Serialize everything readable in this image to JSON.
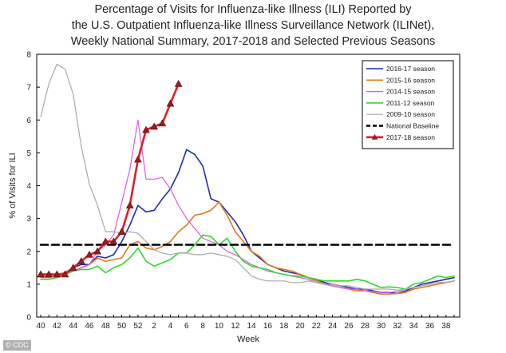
{
  "title_lines": [
    "Percentage of Visits for Influenza-like Illness (ILI) Reported by",
    "the U.S. Outpatient Influenza-like Illness Surveillance Network (ILINet),",
    "Weekly National Summary, 2017-2018  and Selected Previous Seasons"
  ],
  "credit": "© CDC",
  "chart_data": {
    "type": "line",
    "title": "Percentage of Visits for Influenza-like Illness (ILI) Reported by the U.S. Outpatient Influenza-like Illness Surveillance Network (ILINet), Weekly National Summary, 2017-2018  and Selected Previous Seasons",
    "xlabel": "Week",
    "ylabel": "% of Visits for ILI",
    "ylim": [
      0,
      8
    ],
    "yticks": [
      0,
      1,
      2,
      3,
      4,
      5,
      6,
      7,
      8
    ],
    "grid": false,
    "legend_position": "top-right",
    "weeks": [
      40,
      41,
      42,
      43,
      44,
      45,
      46,
      47,
      48,
      49,
      50,
      51,
      52,
      1,
      2,
      3,
      4,
      5,
      6,
      7,
      8,
      9,
      10,
      11,
      12,
      13,
      14,
      15,
      16,
      17,
      18,
      19,
      20,
      21,
      22,
      23,
      24,
      25,
      26,
      27,
      28,
      29,
      30,
      31,
      32,
      33,
      34,
      35,
      36,
      37,
      38,
      39
    ],
    "xtick_labels": [
      "40",
      "42",
      "44",
      "46",
      "48",
      "50",
      "52",
      "2",
      "4",
      "6",
      "8",
      "10",
      "12",
      "14",
      "16",
      "18",
      "20",
      "22",
      "24",
      "26",
      "28",
      "30",
      "32",
      "34",
      "36",
      "38"
    ],
    "series": [
      {
        "name": "2016-17 season",
        "color": "#1c2db5",
        "width": 1.6,
        "dash": "",
        "markers": false,
        "values": [
          1.25,
          1.25,
          1.3,
          1.35,
          1.5,
          1.6,
          1.6,
          1.85,
          1.8,
          1.9,
          2.3,
          2.8,
          3.4,
          3.2,
          3.25,
          3.6,
          3.9,
          4.4,
          5.1,
          4.95,
          4.6,
          3.6,
          3.5,
          3.2,
          2.9,
          2.5,
          2.0,
          1.8,
          1.6,
          1.5,
          1.4,
          1.35,
          1.3,
          1.2,
          1.15,
          1.05,
          1.0,
          0.95,
          0.9,
          0.85,
          0.85,
          0.8,
          0.75,
          0.75,
          0.72,
          0.8,
          0.9,
          1.0,
          1.05,
          1.1,
          1.15,
          1.2
        ]
      },
      {
        "name": "2015-16 season",
        "color": "#e0781a",
        "width": 1.6,
        "dash": "",
        "markers": false,
        "values": [
          1.25,
          1.25,
          1.3,
          1.35,
          1.4,
          1.5,
          1.6,
          1.8,
          1.7,
          1.75,
          1.8,
          2.2,
          2.3,
          2.1,
          2.05,
          2.15,
          2.3,
          2.6,
          2.8,
          3.1,
          3.15,
          3.25,
          3.5,
          3.1,
          2.6,
          2.3,
          2.0,
          1.85,
          1.6,
          1.5,
          1.45,
          1.4,
          1.3,
          1.2,
          1.1,
          1.0,
          0.95,
          0.9,
          0.85,
          0.8,
          0.8,
          0.75,
          0.7,
          0.7,
          0.72,
          0.75,
          0.85,
          0.9,
          0.95,
          1.0,
          1.05,
          1.1
        ]
      },
      {
        "name": "2014-15 season",
        "color": "#e455e0",
        "width": 1.2,
        "dash": "",
        "markers": false,
        "values": [
          1.2,
          1.2,
          1.25,
          1.3,
          1.4,
          1.5,
          1.6,
          2.0,
          2.2,
          2.5,
          3.5,
          4.5,
          6.0,
          4.2,
          4.2,
          4.25,
          3.9,
          3.4,
          3.0,
          2.7,
          2.4,
          2.3,
          2.2,
          2.0,
          1.9,
          1.75,
          1.6,
          1.5,
          1.4,
          1.35,
          1.3,
          1.25,
          1.2,
          1.15,
          1.05,
          1.0,
          0.95,
          0.9,
          0.85,
          0.85,
          0.8,
          0.78,
          0.75,
          0.75,
          0.78,
          0.85,
          0.9,
          0.95,
          1.0,
          1.05,
          1.05,
          1.1
        ]
      },
      {
        "name": "2011-12 season",
        "color": "#2ed92a",
        "width": 1.6,
        "dash": "",
        "markers": false,
        "values": [
          1.15,
          1.15,
          1.2,
          1.3,
          1.4,
          1.45,
          1.45,
          1.55,
          1.35,
          1.5,
          1.6,
          1.8,
          2.1,
          1.7,
          1.55,
          1.65,
          1.75,
          1.95,
          1.95,
          2.2,
          2.5,
          2.45,
          2.2,
          2.4,
          2.0,
          1.7,
          1.55,
          1.5,
          1.45,
          1.35,
          1.3,
          1.25,
          1.25,
          1.2,
          1.15,
          1.1,
          1.1,
          1.1,
          1.1,
          1.15,
          1.1,
          1.0,
          0.9,
          0.92,
          0.9,
          0.85,
          1.0,
          1.05,
          1.15,
          1.25,
          1.2,
          1.25
        ]
      },
      {
        "name": "2009-10 season",
        "color": "#a9a9a9",
        "width": 1.2,
        "dash": "",
        "markers": false,
        "values": [
          6.1,
          7.1,
          7.7,
          7.55,
          6.8,
          5.2,
          4.05,
          3.4,
          2.6,
          2.6,
          2.55,
          2.6,
          2.55,
          2.3,
          2.05,
          1.95,
          1.9,
          1.95,
          1.95,
          1.9,
          1.9,
          1.95,
          1.9,
          1.85,
          1.75,
          1.5,
          1.25,
          1.15,
          1.1,
          1.1,
          1.1,
          1.05,
          1.05,
          1.1,
          1.05,
          1.0,
          1.0,
          0.95,
          0.95,
          0.9,
          0.85,
          0.85,
          0.85,
          0.85,
          0.82,
          0.85,
          0.9,
          0.95,
          1.0,
          1.05,
          1.05,
          1.1
        ]
      },
      {
        "name": "National Baseline",
        "color": "#000000",
        "width": 2.6,
        "dash": "9,5",
        "markers": false,
        "values": [
          2.2,
          2.2,
          2.2,
          2.2,
          2.2,
          2.2,
          2.2,
          2.2,
          2.2,
          2.2,
          2.2,
          2.2,
          2.2,
          2.2,
          2.2,
          2.2,
          2.2,
          2.2,
          2.2,
          2.2,
          2.2,
          2.2,
          2.2,
          2.2,
          2.2,
          2.2,
          2.2,
          2.2,
          2.2,
          2.2,
          2.2,
          2.2,
          2.2,
          2.2,
          2.2,
          2.2,
          2.2,
          2.2,
          2.2,
          2.2,
          2.2,
          2.2,
          2.2,
          2.2,
          2.2,
          2.2,
          2.2,
          2.2,
          2.2,
          2.2,
          2.2,
          2.2
        ]
      },
      {
        "name": "2017-18 season",
        "color": "#e01e24",
        "width": 2.6,
        "dash": "",
        "markers": true,
        "values": [
          1.3,
          1.3,
          1.3,
          1.3,
          1.5,
          1.7,
          1.9,
          2.0,
          2.3,
          2.3,
          2.6,
          3.4,
          4.8,
          5.7,
          5.8,
          5.9,
          6.5,
          7.1
        ]
      }
    ]
  }
}
